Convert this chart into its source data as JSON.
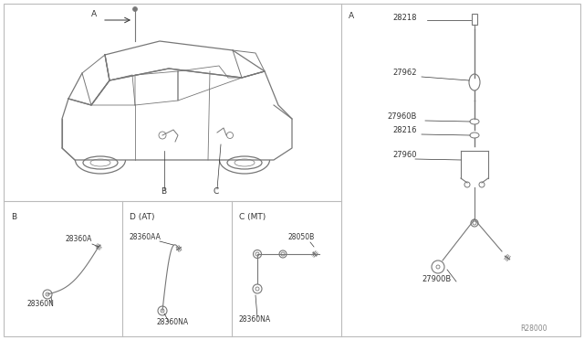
{
  "bg_color": "#ffffff",
  "line_color": "#666666",
  "part_color": "#777777",
  "text_color": "#333333",
  "ref_code": "R28000",
  "section_A_right": "A",
  "section_B": "B",
  "section_D": "D (AT)",
  "section_C": "C (MT)",
  "car_label_A": "A",
  "car_label_B": "B",
  "car_label_C": "C",
  "parts_right_labels": [
    "28218",
    "27962",
    "27960B",
    "28216",
    "27960",
    "27900B"
  ],
  "parts_B_labels": [
    "28360A",
    "28360N"
  ],
  "parts_D_labels": [
    "28360AA",
    "28360NA"
  ],
  "parts_C_labels": [
    "28050B",
    "28360NA"
  ]
}
